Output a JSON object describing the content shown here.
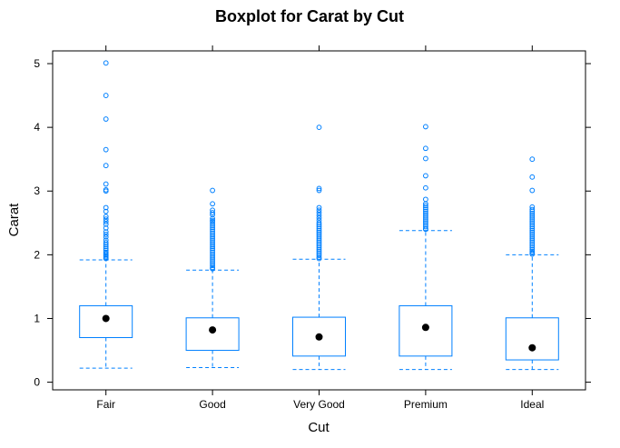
{
  "chart_data": {
    "type": "boxplot",
    "title": "Boxplot for Carat by Cut",
    "xlabel": "Cut",
    "ylabel": "Carat",
    "ylim": [
      -0.12,
      5.2
    ],
    "yticks": [
      0,
      1,
      2,
      3,
      4,
      5
    ],
    "grid": false,
    "colors": {
      "box": "#0080ff",
      "median": "#000000",
      "frame": "#000000"
    },
    "categories": [
      "Fair",
      "Good",
      "Very Good",
      "Premium",
      "Ideal"
    ],
    "boxes": [
      {
        "name": "Fair",
        "whisker_low": 0.22,
        "q1": 0.7,
        "median": 1.0,
        "q3": 1.2,
        "whisker_high": 1.92,
        "outliers": [
          5.01,
          4.5,
          4.13,
          3.65,
          3.4,
          3.11,
          3.02,
          3.0,
          2.74,
          2.68,
          2.6,
          2.56,
          2.52,
          2.48,
          2.42,
          2.36,
          2.32,
          2.28,
          2.23,
          2.19,
          2.16,
          2.13,
          2.1,
          2.07,
          2.04,
          2.02,
          2.0,
          1.98,
          1.96,
          1.94
        ]
      },
      {
        "name": "Good",
        "whisker_low": 0.23,
        "q1": 0.5,
        "median": 0.82,
        "q3": 1.01,
        "whisker_high": 1.76,
        "outliers": [
          3.01,
          2.8,
          2.7,
          2.66,
          2.63,
          2.57,
          2.54,
          2.52,
          2.49,
          2.46,
          2.43,
          2.4,
          2.37,
          2.34,
          2.31,
          2.28,
          2.25,
          2.22,
          2.19,
          2.16,
          2.13,
          2.1,
          2.07,
          2.04,
          2.01,
          1.98,
          1.95,
          1.92,
          1.89,
          1.86,
          1.83,
          1.8,
          1.78
        ]
      },
      {
        "name": "Very Good",
        "whisker_low": 0.2,
        "q1": 0.41,
        "median": 0.71,
        "q3": 1.02,
        "whisker_high": 1.93,
        "outliers": [
          4.0,
          3.04,
          3.01,
          2.74,
          2.7,
          2.66,
          2.62,
          2.58,
          2.54,
          2.5,
          2.47,
          2.44,
          2.41,
          2.38,
          2.35,
          2.32,
          2.29,
          2.26,
          2.23,
          2.2,
          2.17,
          2.14,
          2.11,
          2.08,
          2.05,
          2.02,
          1.99,
          1.96,
          1.94
        ]
      },
      {
        "name": "Premium",
        "whisker_low": 0.2,
        "q1": 0.41,
        "median": 0.86,
        "q3": 1.2,
        "whisker_high": 2.38,
        "outliers": [
          4.01,
          3.67,
          3.51,
          3.24,
          3.05,
          2.87,
          2.8,
          2.77,
          2.74,
          2.71,
          2.68,
          2.65,
          2.62,
          2.59,
          2.56,
          2.53,
          2.5,
          2.47,
          2.44,
          2.41,
          2.4
        ]
      },
      {
        "name": "Ideal",
        "whisker_low": 0.2,
        "q1": 0.35,
        "median": 0.54,
        "q3": 1.01,
        "whisker_high": 2.0,
        "outliers": [
          3.5,
          3.22,
          3.01,
          2.75,
          2.71,
          2.68,
          2.65,
          2.62,
          2.59,
          2.56,
          2.53,
          2.5,
          2.47,
          2.44,
          2.41,
          2.38,
          2.35,
          2.32,
          2.29,
          2.26,
          2.23,
          2.2,
          2.17,
          2.14,
          2.11,
          2.08,
          2.05,
          2.03,
          2.01
        ]
      }
    ]
  }
}
